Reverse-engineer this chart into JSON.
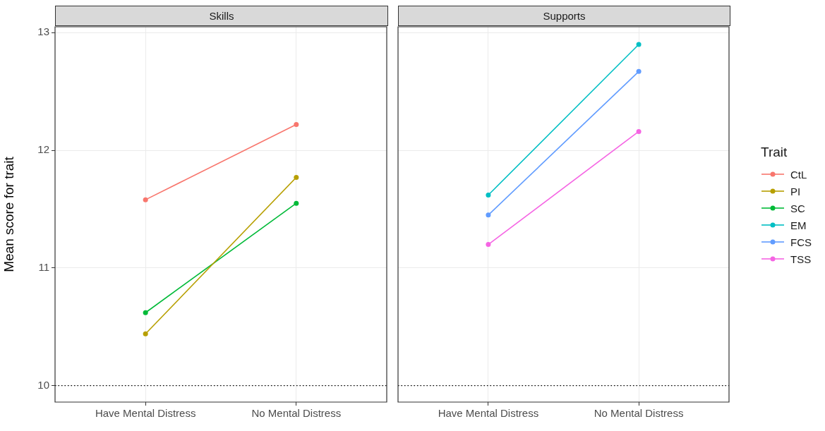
{
  "chart_data": [
    {
      "type": "line",
      "title": "Skills",
      "ylabel": "Mean score for trait",
      "categories": [
        "Have Mental Distress",
        "No Mental Distress"
      ],
      "series": [
        {
          "name": "CtL",
          "color": "#f8766d",
          "values": [
            11.58,
            12.22
          ]
        },
        {
          "name": "PI",
          "color": "#b79f00",
          "values": [
            10.44,
            11.77
          ]
        },
        {
          "name": "SC",
          "color": "#00ba38",
          "values": [
            10.62,
            11.55
          ]
        }
      ],
      "ylim": [
        9.86,
        13.05
      ],
      "yticks": [
        10,
        11,
        12,
        13
      ],
      "grid": true,
      "marker": "circle",
      "line_style": "solid",
      "legend": "right",
      "legend_title": "Trait",
      "ref_lines": [
        {
          "axis": "y",
          "value": 10,
          "color": "#000000",
          "line_style": "dotted"
        }
      ]
    },
    {
      "type": "line",
      "title": "Supports",
      "categories": [
        "Have Mental Distress",
        "No Mental Distress"
      ],
      "series": [
        {
          "name": "EM",
          "color": "#00bfc4",
          "values": [
            11.62,
            12.9
          ]
        },
        {
          "name": "FCS",
          "color": "#619cff",
          "values": [
            11.45,
            12.67
          ]
        },
        {
          "name": "TSS",
          "color": "#f564e3",
          "values": [
            11.2,
            12.16
          ]
        }
      ],
      "ylim": [
        9.86,
        13.05
      ],
      "yticks": [
        10,
        11,
        12,
        13
      ],
      "grid": true,
      "marker": "circle",
      "line_style": "solid",
      "legend": "right",
      "tick_labels": "x",
      "ref_lines": [
        {
          "axis": "y",
          "value": 10,
          "color": "#000000",
          "line_style": "dotted"
        }
      ]
    }
  ]
}
